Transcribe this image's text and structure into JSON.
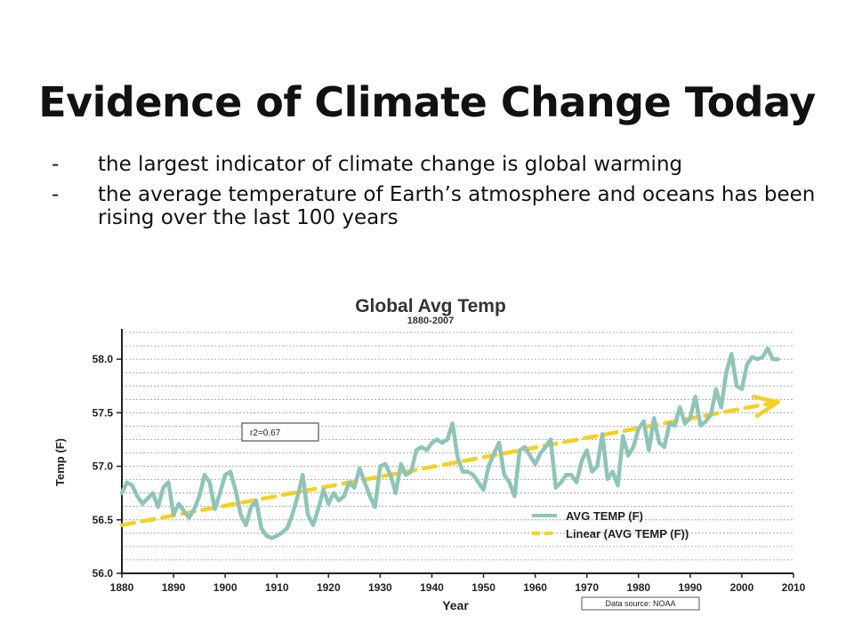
{
  "slide": {
    "title": "Evidence of Climate Change Today",
    "bullets": [
      {
        "marker": "-",
        "text": "the largest indicator of climate change is global warming"
      },
      {
        "marker": "-",
        "text": "the average temperature of Earth’s atmosphere and oceans has been rising over the last 100 years"
      }
    ]
  },
  "chart_data": {
    "type": "line",
    "title": "Global Avg Temp",
    "subtitle": "1880-2007",
    "xlabel": "Year",
    "ylabel": "Temp (F)",
    "xlim": [
      1880,
      2010
    ],
    "ylim": [
      56.0,
      58.25
    ],
    "xticks": [
      1880,
      1890,
      1900,
      1910,
      1920,
      1930,
      1940,
      1950,
      1960,
      1970,
      1980,
      1990,
      2000,
      2010
    ],
    "yticks": [
      56.0,
      56.5,
      57.0,
      57.5,
      58.0
    ],
    "ytick_labels": [
      "56.0",
      "56.5",
      "57.0",
      "57.5",
      "58.0"
    ],
    "grid": true,
    "legend_position": "bottom-right",
    "annotation": "r2=0.67",
    "source_note": "Data source: NOAA",
    "colors": {
      "series": "#8fc4b8",
      "trend": "#f6d020",
      "grid": "#999999",
      "axis": "#222222"
    },
    "series": [
      {
        "name": "AVG TEMP (F)",
        "x": [
          1880,
          1881,
          1882,
          1883,
          1884,
          1885,
          1886,
          1887,
          1888,
          1889,
          1890,
          1891,
          1892,
          1893,
          1894,
          1895,
          1896,
          1897,
          1898,
          1899,
          1900,
          1901,
          1902,
          1903,
          1904,
          1905,
          1906,
          1907,
          1908,
          1909,
          1910,
          1911,
          1912,
          1913,
          1914,
          1915,
          1916,
          1917,
          1918,
          1919,
          1920,
          1921,
          1922,
          1923,
          1924,
          1925,
          1926,
          1927,
          1928,
          1929,
          1930,
          1931,
          1932,
          1933,
          1934,
          1935,
          1936,
          1937,
          1938,
          1939,
          1940,
          1941,
          1942,
          1943,
          1944,
          1945,
          1946,
          1947,
          1948,
          1949,
          1950,
          1951,
          1952,
          1953,
          1954,
          1955,
          1956,
          1957,
          1958,
          1959,
          1960,
          1961,
          1962,
          1963,
          1964,
          1965,
          1966,
          1967,
          1968,
          1969,
          1970,
          1971,
          1972,
          1973,
          1974,
          1975,
          1976,
          1977,
          1978,
          1979,
          1980,
          1981,
          1982,
          1983,
          1984,
          1985,
          1986,
          1987,
          1988,
          1989,
          1990,
          1991,
          1992,
          1993,
          1994,
          1995,
          1996,
          1997,
          1998,
          1999,
          2000,
          2001,
          2002,
          2003,
          2004,
          2005,
          2006,
          2007
        ],
        "values": [
          56.75,
          56.85,
          56.82,
          56.72,
          56.65,
          56.7,
          56.75,
          56.62,
          56.8,
          56.85,
          56.55,
          56.65,
          56.58,
          56.52,
          56.6,
          56.72,
          56.92,
          56.85,
          56.6,
          56.75,
          56.92,
          56.95,
          56.78,
          56.55,
          56.45,
          56.62,
          56.68,
          56.42,
          56.35,
          56.33,
          56.35,
          56.38,
          56.42,
          56.55,
          56.72,
          56.92,
          56.55,
          56.45,
          56.6,
          56.78,
          56.65,
          56.75,
          56.68,
          56.72,
          56.85,
          56.8,
          56.98,
          56.85,
          56.72,
          56.62,
          57.0,
          57.02,
          56.92,
          56.75,
          57.02,
          56.92,
          56.95,
          57.15,
          57.18,
          57.15,
          57.22,
          57.25,
          57.22,
          57.25,
          57.4,
          57.08,
          56.95,
          56.95,
          56.92,
          56.85,
          56.78,
          57.0,
          57.12,
          57.22,
          56.92,
          56.85,
          56.72,
          57.15,
          57.18,
          57.1,
          57.02,
          57.12,
          57.18,
          57.25,
          56.8,
          56.85,
          56.92,
          56.92,
          56.85,
          57.05,
          57.15,
          56.95,
          57.0,
          57.3,
          56.88,
          56.95,
          56.82,
          57.28,
          57.1,
          57.18,
          57.35,
          57.42,
          57.15,
          57.45,
          57.22,
          57.18,
          57.4,
          57.38,
          57.55,
          57.4,
          57.45,
          57.65,
          57.38,
          57.42,
          57.48,
          57.72,
          57.55,
          57.88,
          58.05,
          57.75,
          57.72,
          57.95,
          58.02,
          58.0,
          58.02,
          58.1,
          58.0,
          58.0
        ]
      },
      {
        "name": "Linear (AVG TEMP (F))",
        "x": [
          1880,
          2007
        ],
        "values": [
          56.45,
          57.6
        ]
      }
    ]
  }
}
